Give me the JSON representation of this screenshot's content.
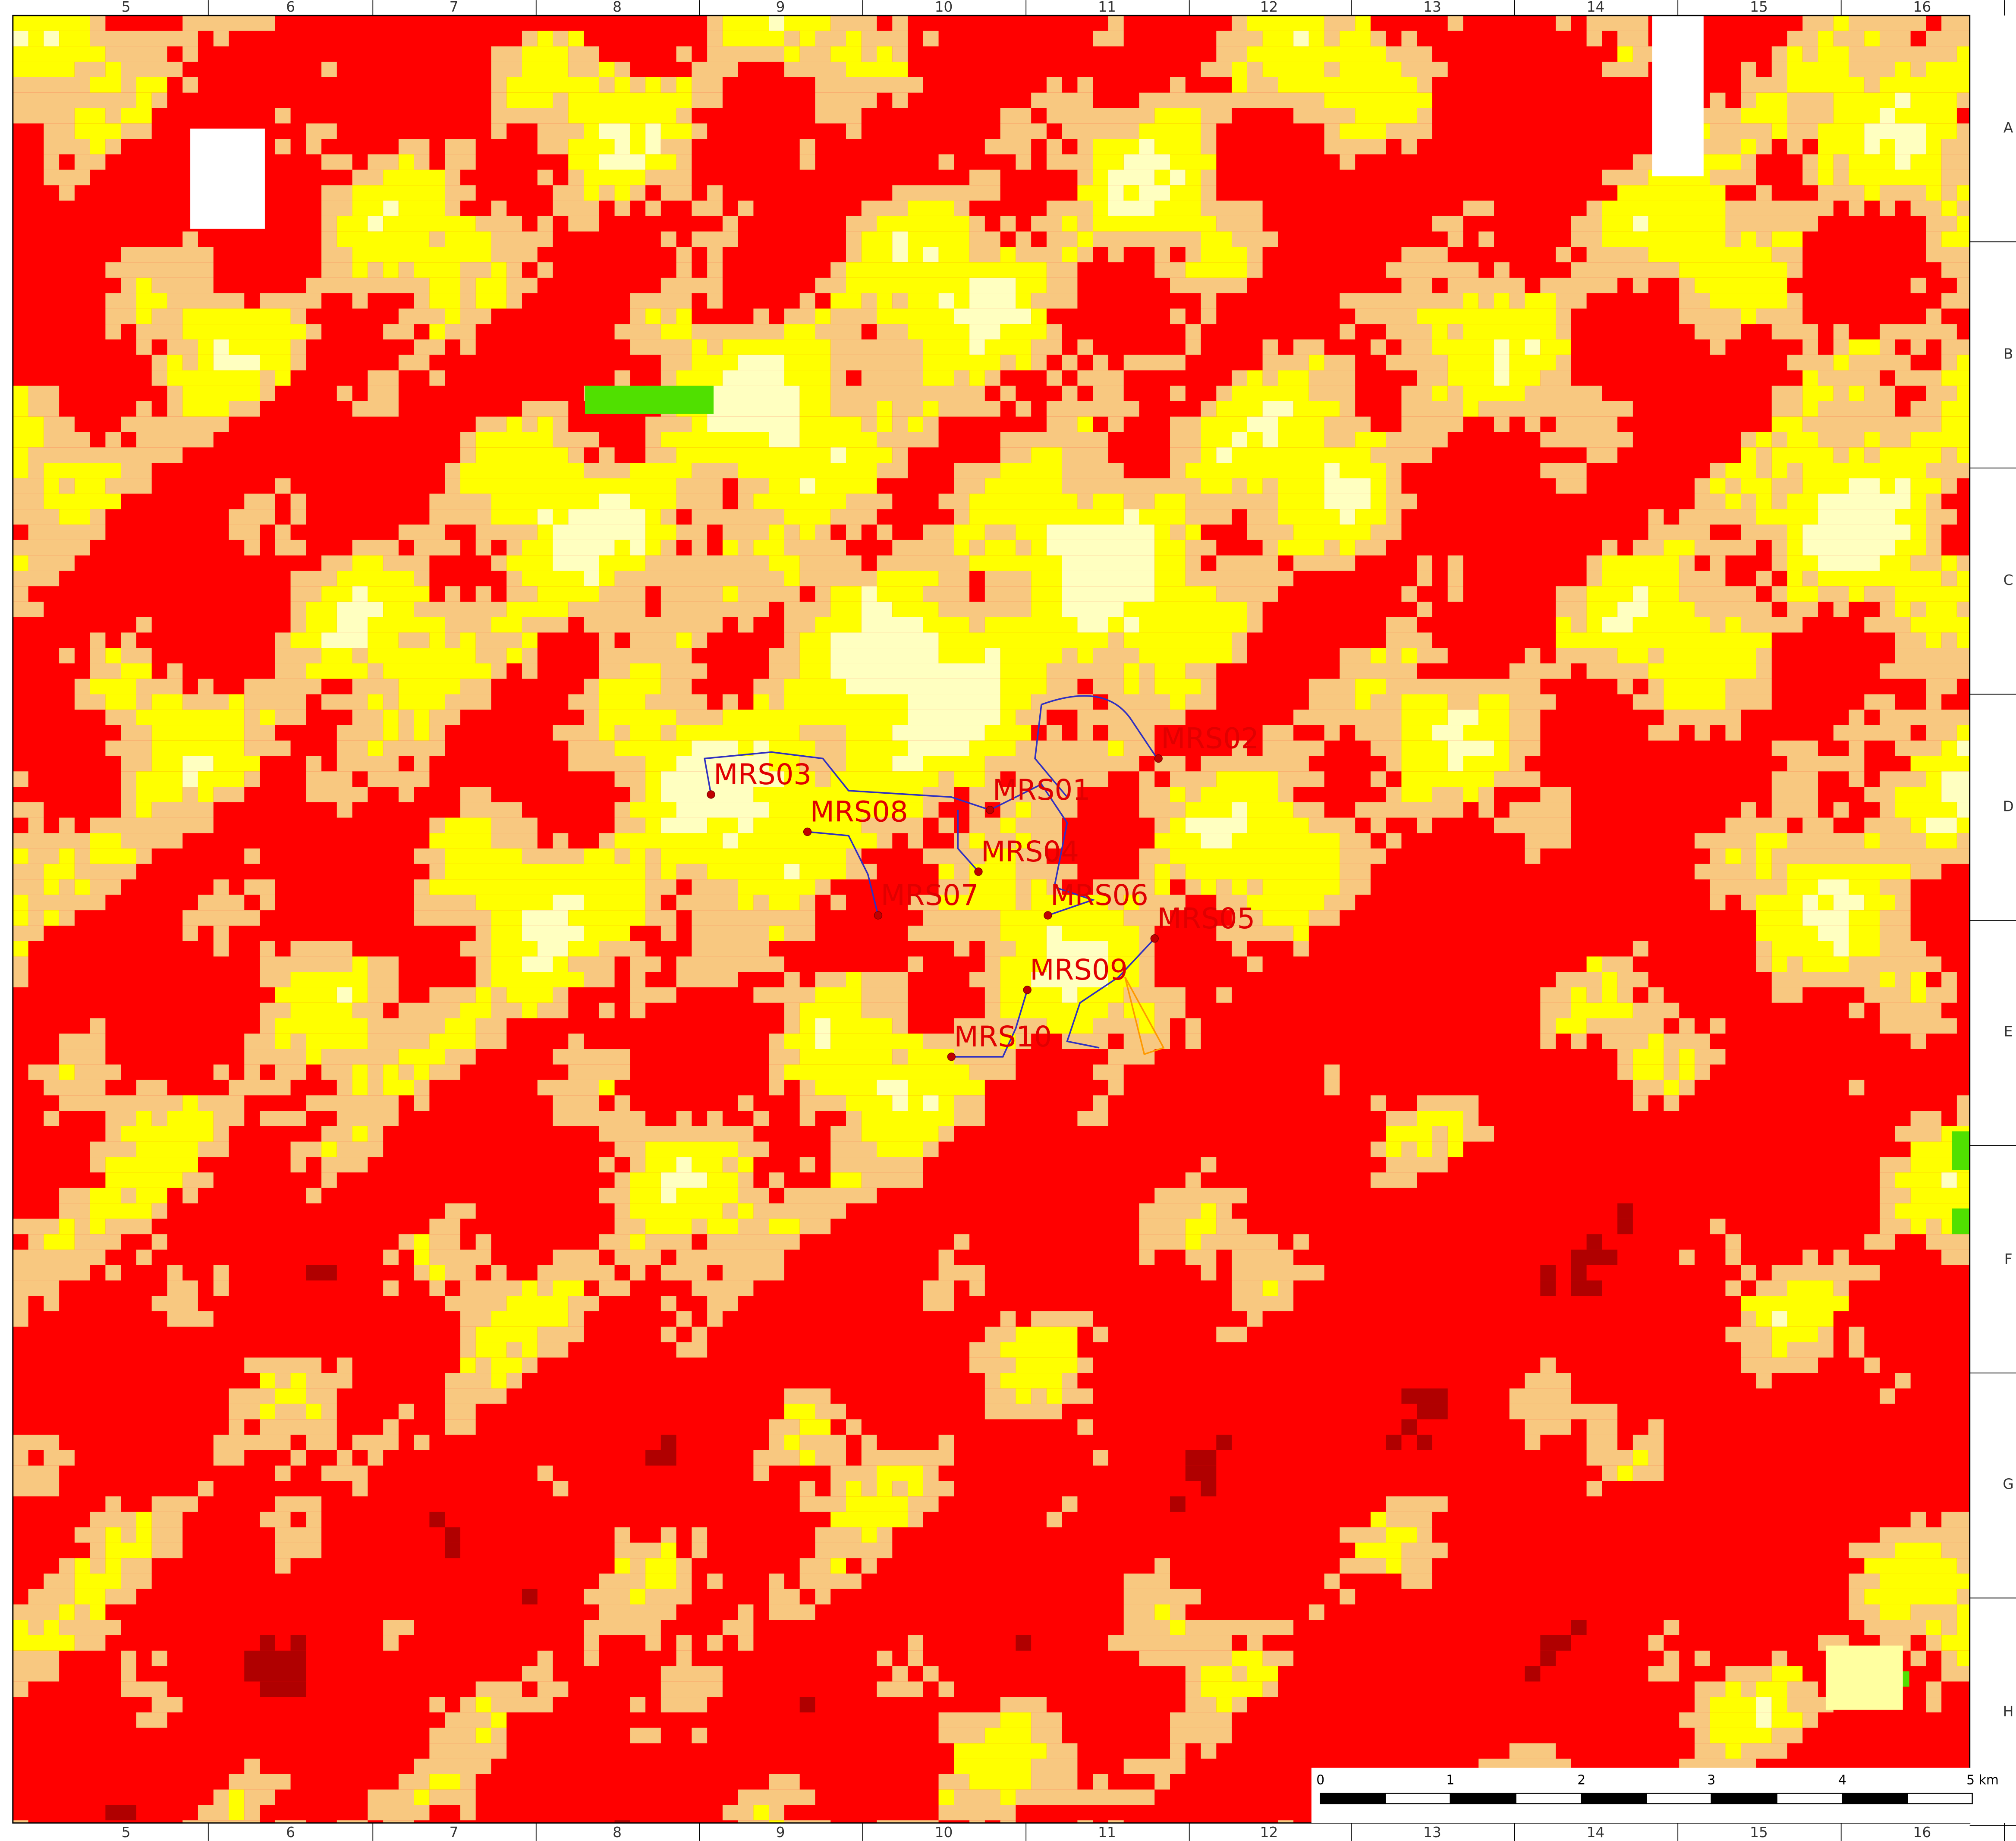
{
  "columns_top": [
    "5",
    "6",
    "7",
    "8",
    "9",
    "10",
    "11",
    "12",
    "13",
    "14",
    "15",
    "16"
  ],
  "columns_bottom": [
    "5",
    "6",
    "7",
    "8",
    "9",
    "10",
    "11",
    "12",
    "13",
    "14",
    "15",
    "16"
  ],
  "rows": [
    "A",
    "B",
    "C",
    "D",
    "E",
    "F",
    "G",
    "H"
  ],
  "sites": [
    {
      "label": "MRS01"
    },
    {
      "label": "MRS02"
    },
    {
      "label": "MRS03"
    },
    {
      "label": "MRS04"
    },
    {
      "label": "MRS05"
    },
    {
      "label": "MRS06"
    },
    {
      "label": "MRS07"
    },
    {
      "label": "MRS08"
    },
    {
      "label": "MRS09"
    },
    {
      "label": "MRS10"
    }
  ],
  "scale_bar": {
    "labels": [
      "0",
      "1",
      "2",
      "3",
      "4",
      "5 km"
    ]
  }
}
